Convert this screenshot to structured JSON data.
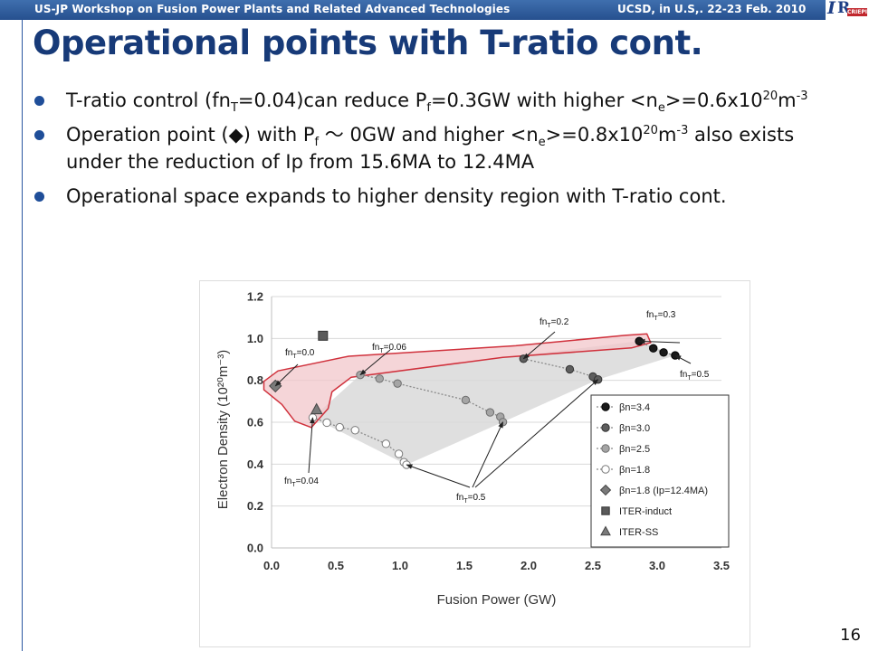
{
  "header": {
    "event": "US-JP  Workshop on Fusion Power Plants and Related Advanced Technologies",
    "venue": "UCSD, in U.S,. 22-23 Feb. 2010",
    "logo_text": "CRIEPI"
  },
  "slide": {
    "title": "Operational points with T-ratio cont.",
    "page_number": "16",
    "bullets": [
      {
        "a": "T-ratio control (fn",
        "a_sub": "T",
        "b": "=0.04)can reduce P",
        "b_sub": "f",
        "c": "=0.3GW with higher <n",
        "c_sub": "e",
        "d": ">=0.6x10",
        "d_sup": "20",
        "e": "m",
        "e_sup": "-3"
      },
      {
        "a": "Operation point (",
        "diamond": "◆",
        "b": ") with P",
        "b_sub": "f",
        "c": " ～ 0GW and higher <n",
        "c_sub": "e",
        "d": ">=0.8x10",
        "d_sup": "20",
        "e": "m",
        "e_sup": "-3",
        "f": " also exists under the reduction of Ip from 15.6MA to 12.4MA"
      },
      {
        "a": "Operational space expands to higher density region with T-ratio cont."
      }
    ]
  },
  "chart_data": {
    "type": "scatter",
    "xlabel": "Fusion Power  (GW)",
    "ylabel": "Electron Density  (10²⁰m⁻³)",
    "xlim": [
      0,
      3.5
    ],
    "ylim": [
      0,
      1.2
    ],
    "xticks": [
      "0.0",
      "0.5",
      "1.0",
      "1.5",
      "2.0",
      "2.5",
      "3.0",
      "3.5"
    ],
    "yticks": [
      "0.0",
      "0.2",
      "0.4",
      "0.6",
      "0.8",
      "1.0",
      "1.2"
    ],
    "grid": "horizontal",
    "legend_position": "right",
    "series": [
      {
        "name": "βn=3.4",
        "marker": "circle",
        "fill": "#1a1a1a",
        "stroke": "#000000",
        "line": true,
        "points": [
          [
            2.86,
            0.987
          ],
          [
            2.97,
            0.953
          ],
          [
            3.05,
            0.933
          ],
          [
            3.14,
            0.919
          ]
        ]
      },
      {
        "name": "βn=3.0",
        "marker": "circle",
        "fill": "#5e5e5e",
        "stroke": "#333333",
        "line": true,
        "points": [
          [
            1.96,
            0.903
          ],
          [
            2.32,
            0.853
          ],
          [
            2.5,
            0.818
          ],
          [
            2.54,
            0.804
          ]
        ]
      },
      {
        "name": "βn=2.5",
        "marker": "circle",
        "fill": "#a5a5a5",
        "stroke": "#6e6e6e",
        "line": true,
        "points": [
          [
            0.69,
            0.826
          ],
          [
            0.84,
            0.808
          ],
          [
            0.98,
            0.785
          ],
          [
            1.51,
            0.706
          ],
          [
            1.7,
            0.647
          ],
          [
            1.78,
            0.626
          ],
          [
            1.8,
            0.601
          ]
        ]
      },
      {
        "name": "βn=1.8",
        "marker": "circle",
        "fill": "#ffffff",
        "stroke": "#7a7a7a",
        "line": true,
        "points": [
          [
            0.32,
            0.622
          ],
          [
            0.43,
            0.598
          ],
          [
            0.53,
            0.576
          ],
          [
            0.65,
            0.562
          ],
          [
            0.89,
            0.497
          ],
          [
            0.99,
            0.449
          ],
          [
            1.03,
            0.409
          ],
          [
            1.05,
            0.397
          ]
        ]
      },
      {
        "name": "βn=1.8 (Ip=12.4MA)",
        "marker": "diamond",
        "fill": "#7a7a7a",
        "stroke": "#444444",
        "line": false,
        "points": [
          [
            0.03,
            0.773
          ]
        ]
      },
      {
        "name": "ITER-induct",
        "marker": "square",
        "fill": "#5a5a5a",
        "stroke": "#333333",
        "line": false,
        "points": [
          [
            0.4,
            1.013
          ]
        ]
      },
      {
        "name": "ITER-SS",
        "marker": "triangle",
        "fill": "#7a7a7a",
        "stroke": "#444444",
        "line": false,
        "points": [
          [
            0.35,
            0.66
          ]
        ]
      }
    ],
    "annotations": [
      {
        "main": "fn",
        "sub": "T",
        "rest": "=0.3"
      },
      {
        "main": "fn",
        "sub": "T",
        "rest": "=0.2"
      },
      {
        "main": "fn",
        "sub": "T",
        "rest": "=0.06"
      },
      {
        "main": "fn",
        "sub": "T",
        "rest": "=0.0"
      },
      {
        "main": "fn",
        "sub": "T",
        "rest": "=0.5"
      },
      {
        "main": "fn",
        "sub": "T",
        "rest": "=0.04"
      },
      {
        "main": "fn",
        "sub": "T",
        "rest": "=0.5"
      }
    ],
    "region_colors": {
      "gray": "#d9d9d9",
      "pink_fill": "#f2c7cb",
      "pink_edge": "#d0313c"
    }
  }
}
